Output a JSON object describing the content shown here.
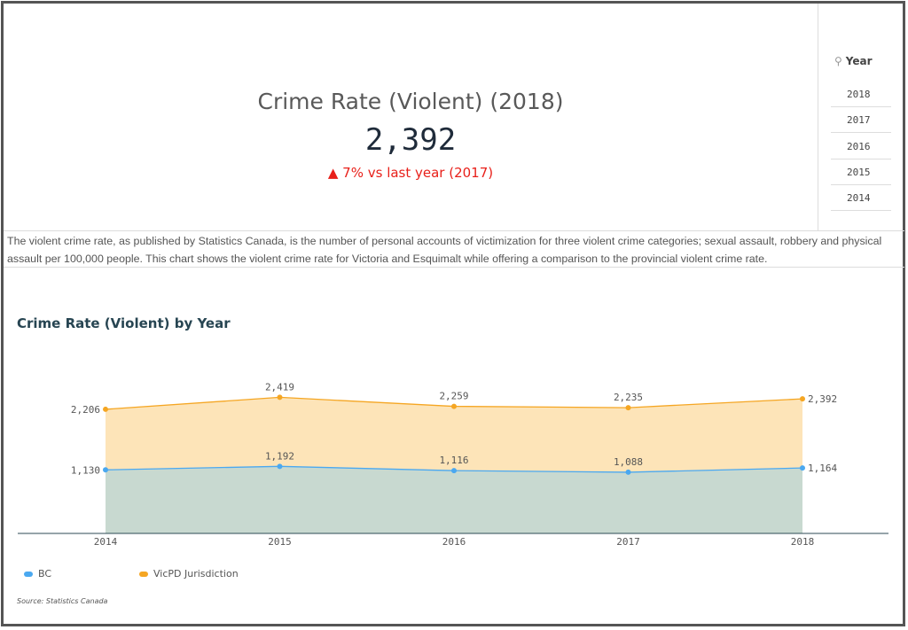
{
  "kpi": {
    "title": "Crime Rate (Violent) (2018)",
    "value": "2,392",
    "delta": "▲ 7% vs last year (2017)"
  },
  "filter": {
    "icon": "search-icon",
    "label": "Year",
    "items": [
      "2018",
      "2017",
      "2016",
      "2015",
      "2014"
    ]
  },
  "description": "The violent crime rate, as published by Statistics Canada, is the number of personal accounts of victimization for three violent crime categories; sexual assault, robbery and physical assault per 100,000 people. This chart shows the violent crime rate for Victoria and Esquimalt while offering a comparison to the provincial violent crime rate.",
  "chart_data": {
    "type": "area",
    "title": "Crime Rate (Violent) by Year",
    "categories": [
      "2014",
      "2015",
      "2016",
      "2017",
      "2018"
    ],
    "series": [
      {
        "name": "BC",
        "values": [
          1130,
          1192,
          1116,
          1088,
          1164
        ],
        "labels": [
          "1,130",
          "1,192",
          "1,116",
          "1,088",
          "1,164"
        ],
        "color": "#4aa8f0",
        "fill": "#c8d9d0"
      },
      {
        "name": "VicPD Jurisdiction",
        "values": [
          2206,
          2419,
          2259,
          2235,
          2392
        ],
        "labels": [
          "2,206",
          "2,419",
          "2,259",
          "2,235",
          "2,392"
        ],
        "color": "#f5a623",
        "fill": "#fde4b8"
      }
    ],
    "ylim": [
      0,
      3150
    ],
    "grid": false,
    "legend": "bottom-left",
    "source": "Source: Statistics Canada"
  }
}
